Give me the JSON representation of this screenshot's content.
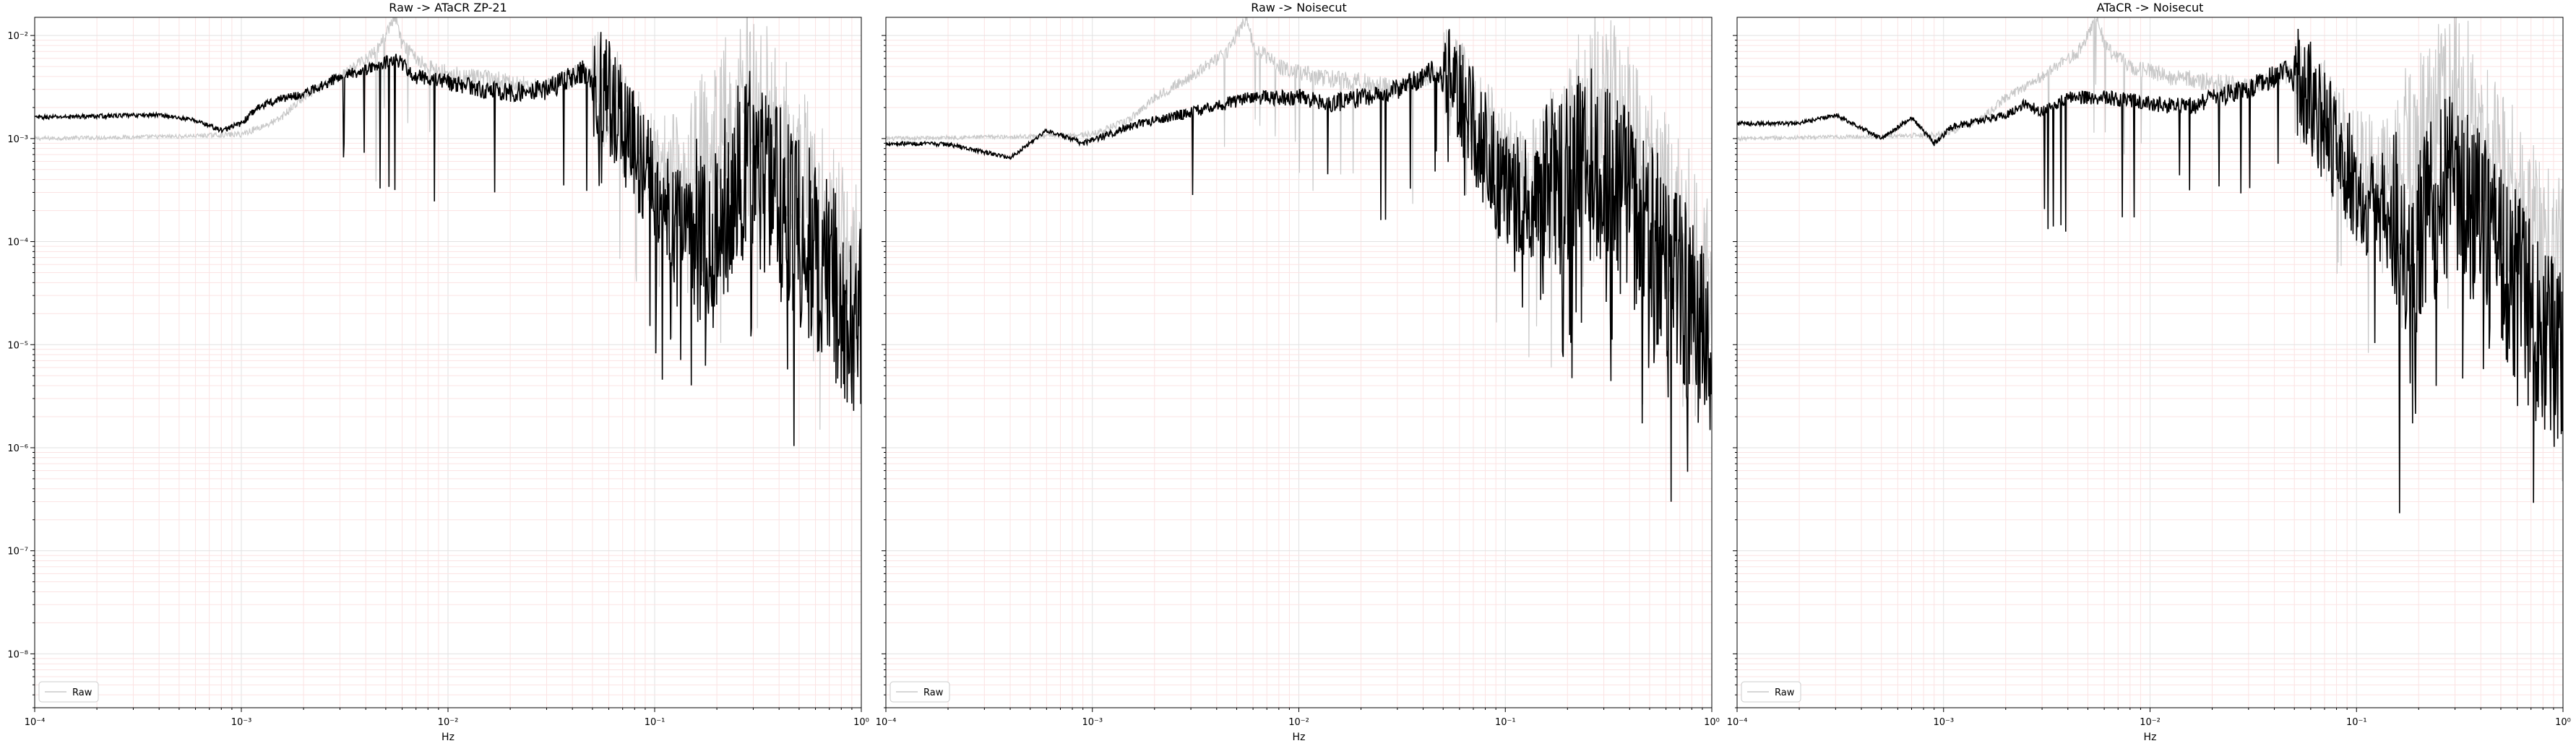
{
  "chart_data": [
    {
      "type": "line",
      "title": "Raw -> ATaCR ZP-21",
      "xlabel": "Hz",
      "ylabel": "",
      "xscale": "log",
      "yscale": "log",
      "xlim": [
        0.0001,
        1
      ],
      "ylim": [
        3e-09,
        0.015
      ],
      "grid": true,
      "legend": {
        "entries": [
          "Raw"
        ],
        "placement": "lower-left"
      },
      "x_tick_labels": [
        "10⁻⁴",
        "10⁻³",
        "10⁻²",
        "10⁻¹",
        "10⁰"
      ],
      "y_tick_labels": [
        "10⁻²",
        "10⁻³",
        "10⁻⁴",
        "10⁻⁵",
        "10⁻⁶",
        "10⁻⁷",
        "10⁻⁸"
      ],
      "series": [
        {
          "name": "Raw",
          "color": "#c8c8c8",
          "x": [
            0.0001,
            0.0005,
            0.001,
            0.0015,
            0.002,
            0.003,
            0.0045,
            0.0056,
            0.006,
            0.008,
            0.012,
            0.02,
            0.03,
            0.045,
            0.06,
            0.08,
            0.1,
            0.15,
            0.2,
            0.25,
            0.3,
            0.4,
            0.6,
            0.8,
            1.0
          ],
          "y": [
            0.001,
            0.00105,
            0.0011,
            0.0015,
            0.0025,
            0.004,
            0.007,
            0.015,
            0.008,
            0.005,
            0.004,
            0.0035,
            0.003,
            0.0045,
            0.0025,
            0.0012,
            0.0005,
            0.0004,
            0.0008,
            0.002,
            0.003,
            0.0008,
            0.0002,
            8e-05,
            4e-05
          ]
        },
        {
          "name": "",
          "color": "#000000",
          "x": [
            0.0001,
            0.0004,
            0.0006,
            0.0008,
            0.001,
            0.0012,
            0.0015,
            0.002,
            0.003,
            0.0045,
            0.0056,
            0.007,
            0.01,
            0.015,
            0.02,
            0.03,
            0.045,
            0.06,
            0.08,
            0.1,
            0.15,
            0.2,
            0.25,
            0.3,
            0.4,
            0.6,
            0.8,
            1.0
          ],
          "y": [
            0.0016,
            0.0017,
            0.0015,
            0.0012,
            0.0014,
            0.002,
            0.0024,
            0.0027,
            0.004,
            0.005,
            0.006,
            0.004,
            0.0035,
            0.003,
            0.0028,
            0.003,
            0.0045,
            0.0025,
            0.0008,
            0.0003,
            0.00015,
            0.00012,
            0.0004,
            0.0006,
            0.00025,
            8e-05,
            3e-05,
            1.5e-05
          ]
        }
      ]
    },
    {
      "type": "line",
      "title": "Raw -> Noisecut",
      "xlabel": "Hz",
      "ylabel": "",
      "xscale": "log",
      "yscale": "log",
      "xlim": [
        0.0001,
        1
      ],
      "ylim": [
        3e-09,
        0.015
      ],
      "grid": true,
      "legend": {
        "entries": [
          "Raw"
        ],
        "placement": "lower-left"
      },
      "x_tick_labels": [
        "10⁻⁴",
        "10⁻³",
        "10⁻²",
        "10⁻¹",
        "10⁰"
      ],
      "y_tick_labels": [
        "10⁻²",
        "10⁻³",
        "10⁻⁴",
        "10⁻⁵",
        "10⁻⁶",
        "10⁻⁷",
        "10⁻⁸"
      ],
      "series": [
        {
          "name": "Raw",
          "color": "#c8c8c8",
          "x": [
            0.0001,
            0.0005,
            0.001,
            0.0015,
            0.002,
            0.003,
            0.0045,
            0.0056,
            0.006,
            0.008,
            0.012,
            0.02,
            0.03,
            0.045,
            0.06,
            0.08,
            0.1,
            0.15,
            0.2,
            0.25,
            0.3,
            0.4,
            0.6,
            0.8,
            1.0
          ],
          "y": [
            0.001,
            0.00105,
            0.0011,
            0.0015,
            0.0025,
            0.004,
            0.007,
            0.015,
            0.008,
            0.005,
            0.004,
            0.0035,
            0.003,
            0.0045,
            0.0025,
            0.0012,
            0.0005,
            0.0004,
            0.0008,
            0.002,
            0.003,
            0.0008,
            0.0002,
            8e-05,
            4e-05
          ]
        },
        {
          "name": "",
          "color": "#000000",
          "x": [
            0.0001,
            0.0002,
            0.0004,
            0.0006,
            0.0009,
            0.0012,
            0.0015,
            0.002,
            0.003,
            0.0045,
            0.006,
            0.01,
            0.015,
            0.02,
            0.03,
            0.045,
            0.06,
            0.08,
            0.1,
            0.15,
            0.2,
            0.25,
            0.3,
            0.4,
            0.6,
            0.8,
            1.0
          ],
          "y": [
            0.0009,
            0.00088,
            0.00065,
            0.0012,
            0.0009,
            0.0011,
            0.0013,
            0.0015,
            0.0018,
            0.0022,
            0.0025,
            0.0025,
            0.0022,
            0.0025,
            0.003,
            0.0045,
            0.0025,
            0.0008,
            0.0003,
            0.00025,
            0.00035,
            0.0006,
            0.0004,
            0.0002,
            6e-05,
            2e-05,
            8e-06
          ]
        }
      ]
    },
    {
      "type": "line",
      "title": "ATaCR -> Noisecut",
      "xlabel": "Hz",
      "ylabel": "",
      "xscale": "log",
      "yscale": "log",
      "xlim": [
        0.0001,
        1
      ],
      "ylim": [
        3e-09,
        0.015
      ],
      "grid": true,
      "legend": {
        "entries": [
          "Raw"
        ],
        "placement": "lower-left"
      },
      "x_tick_labels": [
        "10⁻⁴",
        "10⁻³",
        "10⁻²",
        "10⁻¹",
        "10⁰"
      ],
      "y_tick_labels": [
        "10⁻²",
        "10⁻³",
        "10⁻⁴",
        "10⁻⁵",
        "10⁻⁶",
        "10⁻⁷",
        "10⁻⁸"
      ],
      "series": [
        {
          "name": "Raw",
          "color": "#c8c8c8",
          "x": [
            0.0001,
            0.0005,
            0.001,
            0.0015,
            0.002,
            0.003,
            0.0045,
            0.0056,
            0.006,
            0.008,
            0.012,
            0.02,
            0.03,
            0.045,
            0.06,
            0.08,
            0.1,
            0.15,
            0.2,
            0.25,
            0.3,
            0.4,
            0.6,
            0.8,
            1.0
          ],
          "y": [
            0.001,
            0.00105,
            0.0011,
            0.0015,
            0.0025,
            0.004,
            0.007,
            0.015,
            0.008,
            0.005,
            0.004,
            0.0035,
            0.003,
            0.0045,
            0.0025,
            0.0012,
            0.0005,
            0.0004,
            0.0008,
            0.002,
            0.003,
            0.0008,
            0.0002,
            8e-05,
            4e-05
          ]
        },
        {
          "name": "",
          "color": "#000000",
          "x": [
            0.0001,
            0.0002,
            0.0003,
            0.0005,
            0.0007,
            0.0009,
            0.0011,
            0.0015,
            0.002,
            0.0025,
            0.003,
            0.004,
            0.006,
            0.01,
            0.015,
            0.02,
            0.03,
            0.045,
            0.06,
            0.08,
            0.1,
            0.15,
            0.2,
            0.25,
            0.3,
            0.4,
            0.6,
            0.8,
            1.0
          ],
          "y": [
            0.0014,
            0.0014,
            0.0017,
            0.001,
            0.0016,
            0.0009,
            0.0013,
            0.0015,
            0.0017,
            0.0022,
            0.0018,
            0.0025,
            0.0025,
            0.0022,
            0.002,
            0.0024,
            0.003,
            0.0045,
            0.0025,
            0.0008,
            0.00035,
            0.00015,
            0.0001,
            0.00025,
            0.00035,
            0.00015,
            4e-05,
            1.2e-05,
            5e-06
          ]
        }
      ]
    }
  ]
}
